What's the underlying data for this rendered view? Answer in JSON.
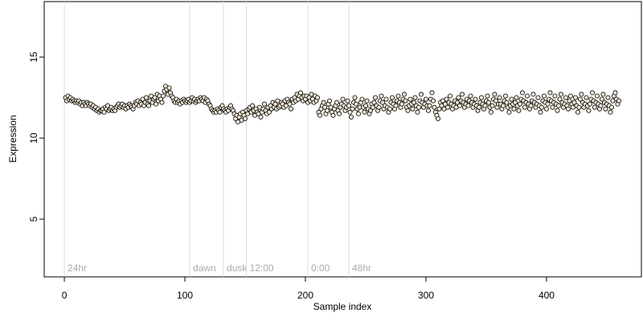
{
  "chart_data": {
    "type": "scatter",
    "xlabel": "Sample index",
    "ylabel": "Expression",
    "xlim": [
      -16.7,
      478.7
    ],
    "ylim": [
      1.44,
      18.42
    ],
    "xticks": [
      0,
      100,
      200,
      300,
      400
    ],
    "yticks": [
      5,
      10,
      15
    ],
    "color": "#f3e7d6",
    "edgecolor": "#000000",
    "annotations": [
      {
        "label": "24hr",
        "x": 0
      },
      {
        "label": "dawn",
        "x": 104
      },
      {
        "label": "dusk",
        "x": 132
      },
      {
        "label": "12:00",
        "x": 151
      },
      {
        "label": "0:00",
        "x": 202
      },
      {
        "label": "48hr",
        "x": 236
      }
    ],
    "x": [
      1,
      2,
      3,
      4,
      5,
      6,
      7,
      8,
      9,
      10,
      11,
      12,
      13,
      14,
      15,
      16,
      17,
      18,
      19,
      20,
      21,
      22,
      23,
      24,
      25,
      26,
      27,
      28,
      29,
      30,
      31,
      32,
      33,
      34,
      35,
      36,
      37,
      38,
      39,
      40,
      41,
      42,
      43,
      44,
      45,
      46,
      47,
      48,
      49,
      50,
      51,
      52,
      53,
      54,
      55,
      56,
      57,
      58,
      59,
      60,
      61,
      62,
      63,
      64,
      65,
      66,
      67,
      68,
      69,
      70,
      71,
      72,
      73,
      74,
      75,
      76,
      77,
      78,
      79,
      80,
      81,
      82,
      83,
      84,
      85,
      86,
      87,
      88,
      89,
      90,
      91,
      92,
      93,
      94,
      95,
      96,
      97,
      98,
      99,
      100,
      101,
      102,
      103,
      104,
      105,
      106,
      107,
      108,
      109,
      110,
      111,
      112,
      113,
      114,
      115,
      116,
      117,
      118,
      119,
      120,
      121,
      122,
      123,
      124,
      125,
      126,
      127,
      128,
      129,
      130,
      131,
      132,
      133,
      134,
      135,
      136,
      137,
      138,
      139,
      140,
      141,
      142,
      143,
      144,
      145,
      146,
      147,
      148,
      149,
      150,
      151,
      152,
      153,
      154,
      155,
      156,
      157,
      158,
      159,
      160,
      161,
      162,
      163,
      164,
      165,
      166,
      167,
      168,
      169,
      170,
      171,
      172,
      173,
      174,
      175,
      176,
      177,
      178,
      179,
      180,
      181,
      182,
      183,
      184,
      185,
      186,
      187,
      188,
      189,
      190,
      191,
      192,
      193,
      194,
      195,
      196,
      197,
      198,
      199,
      200,
      201,
      202,
      203,
      204,
      205,
      206,
      207,
      208,
      209,
      210,
      211,
      212,
      213,
      214,
      215,
      216,
      217,
      218,
      219,
      220,
      221,
      222,
      223,
      224,
      225,
      226,
      227,
      228,
      229,
      230,
      231,
      232,
      233,
      234,
      235,
      236,
      237,
      238,
      239,
      240,
      241,
      242,
      243,
      244,
      245,
      246,
      247,
      248,
      249,
      250,
      251,
      252,
      253,
      254,
      255,
      256,
      257,
      258,
      259,
      260,
      261,
      262,
      263,
      264,
      265,
      266,
      267,
      268,
      269,
      270,
      271,
      272,
      273,
      274,
      275,
      276,
      277,
      278,
      279,
      280,
      281,
      282,
      283,
      284,
      285,
      286,
      287,
      288,
      289,
      290,
      291,
      292,
      293,
      294,
      295,
      296,
      297,
      298,
      299,
      300,
      301,
      302,
      303,
      304,
      305,
      306,
      307,
      308,
      309,
      310,
      311,
      312,
      313,
      314,
      315,
      316,
      317,
      318,
      319,
      320,
      321,
      322,
      323,
      324,
      325,
      326,
      327,
      328,
      329,
      330,
      331,
      332,
      333,
      334,
      335,
      336,
      337,
      338,
      339,
      340,
      341,
      342,
      343,
      344,
      345,
      346,
      347,
      348,
      349,
      350,
      351,
      352,
      353,
      354,
      355,
      356,
      357,
      358,
      359,
      360,
      361,
      362,
      363,
      364,
      365,
      366,
      367,
      368,
      369,
      370,
      371,
      372,
      373,
      374,
      375,
      376,
      377,
      378,
      379,
      380,
      381,
      382,
      383,
      384,
      385,
      386,
      387,
      388,
      389,
      390,
      391,
      392,
      393,
      394,
      395,
      396,
      397,
      398,
      399,
      400,
      401,
      402,
      403,
      404,
      405,
      406,
      407,
      408,
      409,
      410,
      411,
      412,
      413,
      414,
      415,
      416,
      417,
      418,
      419,
      420,
      421,
      422,
      423,
      424,
      425,
      426,
      427,
      428,
      429,
      430,
      431,
      432,
      433,
      434,
      435,
      436,
      437,
      438,
      439,
      440,
      441,
      442,
      443,
      444,
      445,
      446,
      447,
      448,
      449,
      450,
      451,
      452,
      453,
      454,
      455,
      456,
      457,
      458,
      459,
      460
    ],
    "values": [
      12.5,
      12.3,
      12.6,
      12.4,
      12.5,
      12.3,
      12.4,
      12.3,
      12.2,
      12.3,
      12.2,
      12.3,
      12.1,
      12.2,
      12.0,
      12.2,
      12.1,
      12.0,
      12.2,
      12.1,
      12.0,
      12.1,
      11.9,
      12.0,
      11.8,
      11.9,
      11.7,
      11.8,
      11.6,
      11.7,
      11.7,
      11.8,
      11.6,
      11.9,
      11.8,
      12.0,
      11.7,
      11.8,
      11.9,
      11.7,
      11.8,
      11.7,
      11.9,
      12.0,
      12.1,
      11.9,
      12.0,
      12.1,
      11.9,
      12.0,
      11.8,
      12.0,
      11.9,
      12.1,
      12.0,
      11.9,
      11.8,
      12.0,
      12.2,
      12.1,
      12.3,
      12.0,
      12.2,
      12.1,
      12.4,
      12.0,
      12.2,
      12.5,
      12.1,
      12.0,
      12.3,
      12.6,
      12.2,
      12.4,
      12.5,
      12.1,
      12.7,
      12.3,
      12.6,
      12.4,
      12.2,
      12.6,
      12.9,
      13.2,
      13.0,
      12.7,
      13.1,
      12.8,
      12.6,
      12.5,
      12.3,
      12.2,
      12.4,
      12.2,
      12.3,
      12.1,
      12.3,
      12.2,
      12.4,
      12.3,
      12.2,
      12.3,
      12.4,
      12.2,
      12.3,
      12.5,
      12.3,
      12.4,
      12.2,
      12.3,
      12.4,
      12.3,
      12.5,
      12.4,
      12.3,
      12.5,
      12.2,
      12.4,
      12.3,
      12.1,
      12.0,
      11.8,
      11.7,
      11.6,
      11.7,
      11.6,
      11.8,
      11.7,
      11.6,
      11.9,
      12.0,
      11.8,
      11.7,
      11.6,
      11.8,
      11.7,
      11.9,
      12.0,
      11.8,
      11.7,
      11.5,
      11.2,
      11.4,
      11.0,
      11.3,
      11.5,
      11.1,
      11.6,
      11.4,
      11.2,
      11.7,
      11.5,
      11.8,
      11.9,
      11.6,
      12.0,
      11.7,
      11.4,
      11.8,
      11.6,
      11.5,
      11.9,
      11.3,
      11.6,
      11.8,
      12.1,
      11.7,
      11.5,
      11.9,
      11.6,
      12.0,
      11.8,
      12.2,
      11.9,
      12.1,
      11.8,
      12.3,
      11.9,
      12.0,
      12.2,
      12.1,
      11.9,
      12.3,
      12.0,
      12.4,
      12.2,
      12.1,
      11.8,
      12.4,
      12.2,
      12.5,
      12.3,
      12.7,
      12.4,
      12.6,
      12.8,
      12.5,
      12.3,
      12.6,
      12.4,
      12.6,
      12.2,
      12.5,
      12.3,
      12.7,
      12.4,
      12.2,
      12.6,
      12.3,
      12.5,
      11.6,
      11.4,
      11.8,
      12.0,
      12.2,
      11.9,
      11.5,
      11.7,
      12.1,
      12.3,
      11.9,
      11.6,
      11.4,
      11.8,
      12.0,
      12.2,
      11.7,
      11.5,
      11.9,
      12.1,
      12.4,
      12.0,
      11.7,
      11.9,
      12.3,
      12.0,
      11.6,
      11.3,
      11.8,
      12.2,
      12.5,
      12.1,
      11.8,
      11.5,
      11.9,
      12.2,
      12.4,
      11.9,
      11.6,
      12.0,
      12.3,
      11.8,
      11.5,
      11.7,
      12.1,
      11.9,
      12.2,
      12.5,
      12.0,
      11.7,
      11.9,
      12.3,
      12.6,
      12.2,
      11.8,
      12.0,
      12.4,
      11.9,
      11.6,
      11.8,
      12.2,
      12.5,
      12.1,
      11.8,
      12.0,
      12.3,
      12.6,
      12.2,
      11.9,
      12.1,
      12.4,
      12.7,
      12.3,
      11.9,
      11.7,
      12.0,
      12.4,
      12.1,
      11.8,
      12.2,
      12.5,
      12.0,
      11.6,
      11.9,
      12.3,
      12.7,
      12.2,
      11.9,
      12.1,
      12.4,
      12.0,
      11.7,
      12.0,
      12.4,
      12.8,
      12.3,
      11.9,
      11.6,
      11.4,
      11.2,
      11.8,
      12.2,
      12.0,
      12.3,
      11.8,
      12.1,
      12.4,
      11.9,
      12.2,
      12.6,
      12.1,
      11.8,
      12.0,
      12.3,
      11.9,
      12.2,
      12.5,
      12.0,
      12.3,
      12.7,
      12.2,
      11.9,
      12.1,
      12.4,
      12.0,
      12.3,
      12.6,
      12.2,
      11.9,
      12.1,
      12.4,
      12.0,
      11.7,
      11.9,
      12.2,
      12.5,
      12.1,
      11.8,
      12.0,
      12.3,
      12.6,
      12.2,
      11.9,
      11.6,
      12.0,
      12.4,
      12.7,
      12.3,
      11.9,
      12.1,
      12.5,
      12.1,
      11.8,
      12.0,
      12.3,
      12.6,
      12.2,
      11.9,
      11.6,
      12.0,
      12.4,
      12.1,
      11.8,
      12.2,
      12.5,
      12.0,
      11.7,
      12.1,
      12.4,
      12.8,
      12.3,
      11.9,
      12.2,
      12.6,
      12.1,
      11.8,
      12.0,
      12.3,
      12.7,
      12.2,
      11.9,
      12.1,
      12.5,
      12.0,
      11.6,
      11.9,
      12.3,
      12.6,
      12.2,
      11.8,
      12.1,
      12.4,
      12.8,
      12.3,
      11.9,
      12.2,
      12.6,
      12.1,
      11.7,
      12.0,
      12.4,
      12.7,
      12.2,
      11.9,
      12.1,
      12.5,
      12.0,
      11.8,
      12.3,
      12.6,
      12.1,
      11.9,
      12.2,
      12.5,
      12.0,
      11.6,
      11.9,
      12.4,
      12.7,
      12.2,
      11.9,
      12.1,
      12.5,
      12.0,
      11.7,
      12.1,
      12.4,
      12.8,
      12.3,
      11.9,
      12.2,
      12.6,
      12.1,
      11.8,
      12.0,
      12.4,
      12.7,
      12.2,
      11.8,
      12.1,
      12.5,
      12.0,
      11.6,
      11.9,
      12.3,
      12.6,
      12.8,
      12.4,
      12.1,
      12.3
    ]
  }
}
